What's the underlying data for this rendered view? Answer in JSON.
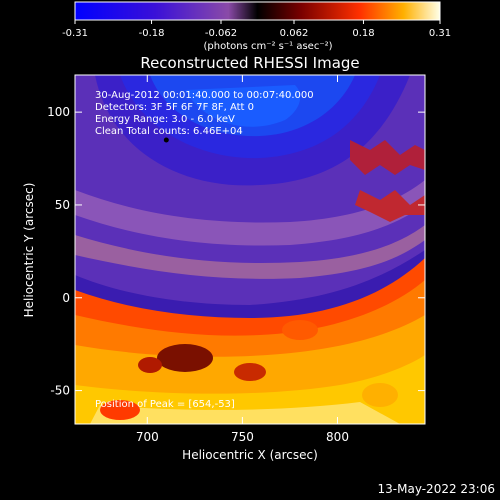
{
  "colorbar": {
    "ticks": [
      "-0.31",
      "-0.18",
      "-0.062",
      "0.062",
      "0.18",
      "0.31"
    ],
    "unit_label": "(photons cm⁻² s⁻¹ asec⁻²)"
  },
  "chart_data": {
    "type": "heatmap",
    "title": "Reconstructed RHESSI Image",
    "xlabel": "Heliocentric X (arcsec)",
    "ylabel": "Heliocentric Y (arcsec)",
    "xlim": [
      662,
      846
    ],
    "ylim": [
      -68,
      120
    ],
    "x_ticks": [
      700,
      750,
      800
    ],
    "y_ticks": [
      -50,
      0,
      50,
      100
    ],
    "colorscale_range": [
      -0.31,
      0.31
    ],
    "annotations": [
      "30-Aug-2012 00:01:40.000 to 00:07:40.000",
      "Detectors: 3F 5F 6F 7F 8F, Att 0",
      "Energy Range: 3.0 - 6.0 keV",
      "Clean     Total counts: 6.46E+04"
    ],
    "peak_label": "Position of Peak = [654,-53]",
    "marker_point": {
      "x": 710,
      "y": 85
    }
  },
  "footer_timestamp": "13-May-2022 23:06"
}
